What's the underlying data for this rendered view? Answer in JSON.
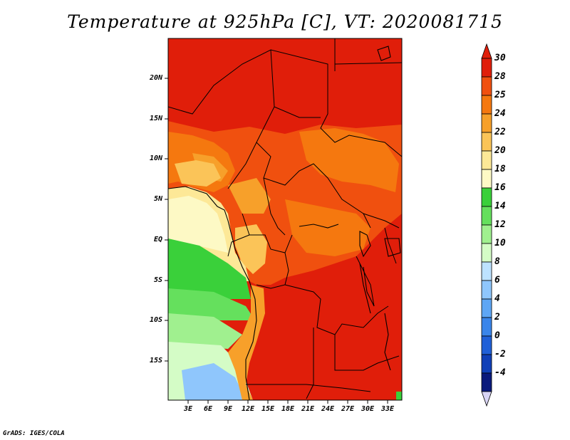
{
  "title": "Temperature at 925hPa [C], VT: 2020081715",
  "credit": "GrADS: IGES/COLA",
  "map": {
    "projection": "latlon",
    "lat_range": [
      -20,
      24.5
    ],
    "lon_range": [
      -0.5,
      34.5
    ],
    "lat_labels": [
      "20N",
      "15N",
      "10N",
      "5N",
      "EQ",
      "5S",
      "10S",
      "15S"
    ],
    "lon_labels": [
      "3E",
      "6E",
      "9E",
      "12E",
      "15E",
      "18E",
      "21E",
      "24E",
      "27E",
      "30E",
      "33E"
    ],
    "field": "temperature_925hPa",
    "units": "C"
  },
  "colorbar": {
    "labels": [
      "30",
      "28",
      "25",
      "24",
      "22",
      "20",
      "18",
      "16",
      "14",
      "12",
      "10",
      "8",
      "6",
      "4",
      "2",
      "0",
      "-2",
      "-4"
    ],
    "colors": [
      "#e01e0a",
      "#f0500f",
      "#f5780f",
      "#f7a02a",
      "#fbc458",
      "#fde897",
      "#fdf9c5",
      "#3ad03a",
      "#65e05d",
      "#a0f08f",
      "#d4fcc6",
      "#bde2ff",
      "#8fc6fc",
      "#5ea6f5",
      "#3a85ea",
      "#2060d8",
      "#1040b8",
      "#0a1a7c"
    ],
    "top_color": "#e01e0a",
    "bottom_color": "#d8d4f4"
  }
}
